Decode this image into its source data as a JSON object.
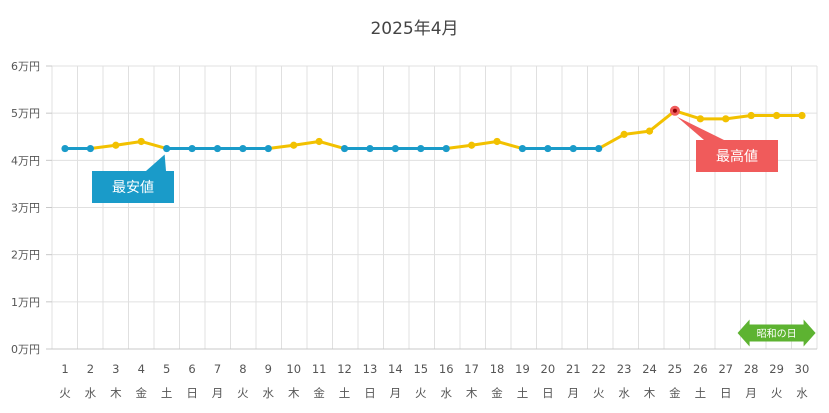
{
  "chart_data": {
    "type": "line",
    "title": "2025年4月",
    "xlabel": "",
    "ylabel": "",
    "ylim": [
      0,
      60000
    ],
    "y_tick_values": [
      0,
      10000,
      20000,
      30000,
      40000,
      50000,
      60000
    ],
    "y_tick_labels": [
      "0万円",
      "1万円",
      "2万円",
      "3万円",
      "4万円",
      "5万円",
      "6万円"
    ],
    "grid": true,
    "categories": [
      "1",
      "2",
      "3",
      "4",
      "5",
      "6",
      "7",
      "8",
      "9",
      "10",
      "11",
      "12",
      "13",
      "14",
      "15",
      "16",
      "17",
      "18",
      "19",
      "20",
      "21",
      "22",
      "23",
      "24",
      "25",
      "26",
      "27",
      "28",
      "29",
      "30"
    ],
    "weekdays": [
      "火",
      "水",
      "木",
      "金",
      "土",
      "日",
      "月",
      "火",
      "水",
      "木",
      "金",
      "土",
      "日",
      "月",
      "火",
      "水",
      "木",
      "金",
      "土",
      "日",
      "月",
      "火",
      "水",
      "木",
      "金",
      "土",
      "日",
      "月",
      "火",
      "水"
    ],
    "series": [
      {
        "values": [
          42500,
          42500,
          43200,
          44000,
          42500,
          42500,
          42500,
          42500,
          42500,
          43200,
          44000,
          42500,
          42500,
          42500,
          42500,
          42500,
          43200,
          44000,
          42500,
          42500,
          42500,
          42500,
          45500,
          46200,
          50500,
          48800,
          48800,
          49500,
          49500,
          49500
        ]
      }
    ],
    "colors": {
      "high": "#f2c100",
      "low": "#1a9bc9",
      "max": "#f05b5b"
    },
    "annotations": [
      {
        "label": "最安値",
        "day": 5,
        "color": "#1a9bc9"
      },
      {
        "label": "最高値",
        "day": 25,
        "color": "#f05b5b"
      }
    ],
    "holiday_marker": {
      "label": "昭和の日",
      "day": 29,
      "color": "#5db331"
    }
  }
}
